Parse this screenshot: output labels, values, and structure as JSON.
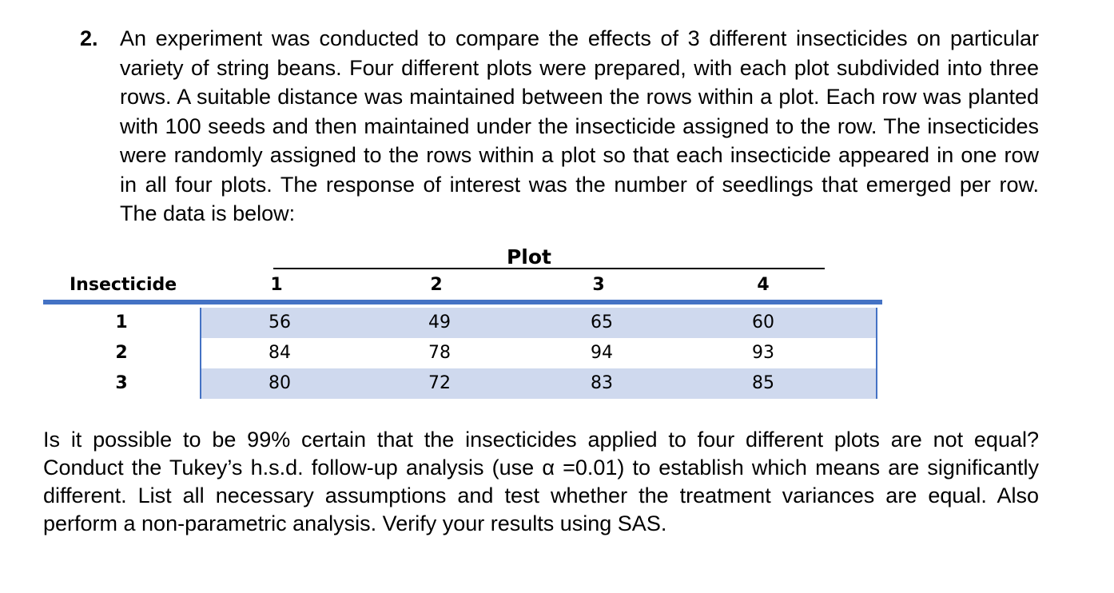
{
  "question": {
    "number": "2.",
    "text": "An experiment was conducted to compare the effects of 3 different insecticides on particular variety of string beans. Four different plots were prepared, with each plot subdivided into three rows. A suitable distance was maintained between the rows within a plot. Each row was planted with 100 seeds and then maintained under the insecticide assigned to the row. The insecticides were randomly assigned to the rows within a plot so that each insecticide appeared in one row in all four plots. The response of interest was the number of seedlings that emerged per row. The data is below:"
  },
  "table": {
    "group_header": "Plot",
    "row_header": "Insecticide",
    "columns": [
      "1",
      "2",
      "3",
      "4"
    ],
    "rows": [
      {
        "label": "1",
        "values": [
          "56",
          "49",
          "65",
          "60"
        ]
      },
      {
        "label": "2",
        "values": [
          "84",
          "78",
          "94",
          "93"
        ]
      },
      {
        "label": "3",
        "values": [
          "80",
          "72",
          "83",
          "85"
        ]
      }
    ],
    "accent_color": "#4472c4",
    "band_color": "#cfd9ee"
  },
  "follow_up": "Is it possible to be 99% certain that the insecticides applied to four different plots are not equal? Conduct the Tukey’s h.s.d. follow-up analysis (use α =0.01) to establish which means are significantly different. List all necessary assumptions and test whether the treatment variances are equal. Also perform a non-parametric analysis. Verify your results using SAS."
}
